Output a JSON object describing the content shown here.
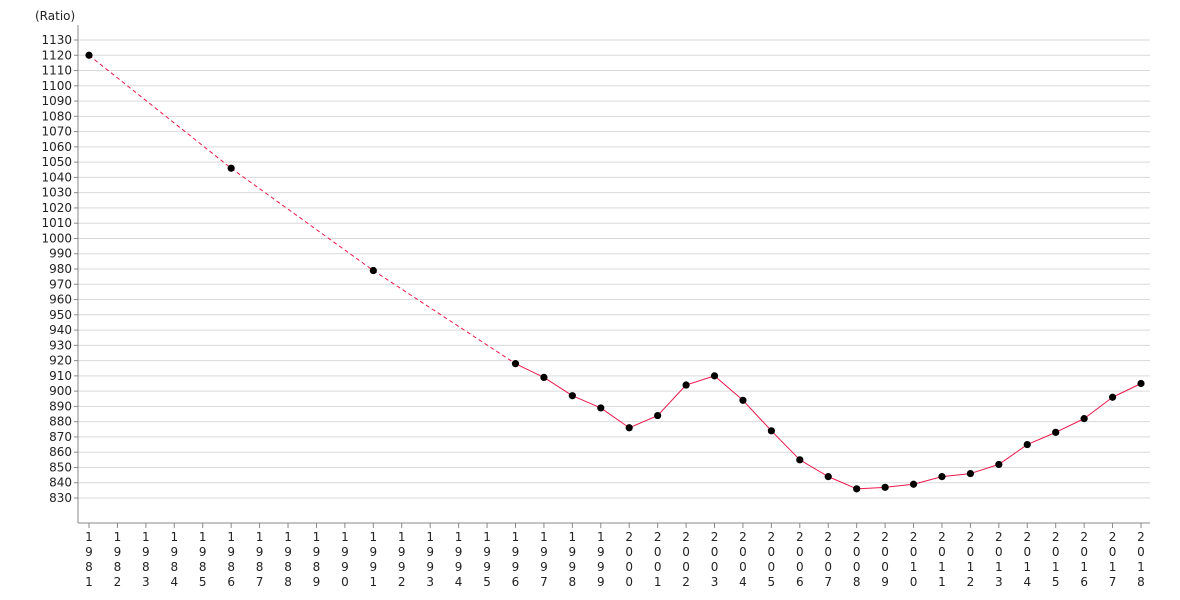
{
  "chart_data": {
    "type": "line",
    "title": "",
    "ylabel": "(Ratio)",
    "xlabel": "",
    "ylim": [
      830,
      1130
    ],
    "ytick_step": 10,
    "xlim": [
      1981,
      2018
    ],
    "grid": true,
    "colors": {
      "line": "#e8194b",
      "marker": "#000000",
      "grid": "#d9d9d9",
      "axis": "#888888"
    },
    "series": [
      {
        "x": [
          1981,
          1986,
          1991,
          1996,
          1997,
          1998,
          1999,
          2000,
          2001,
          2002,
          2003,
          2004,
          2005,
          2006,
          2007,
          2008,
          2009,
          2010,
          2011,
          2012,
          2013,
          2014,
          2015,
          2016,
          2017,
          2018
        ],
        "values": [
          1120,
          1046,
          979,
          918,
          909,
          897,
          889,
          876,
          884,
          904,
          910,
          894,
          874,
          855,
          844,
          836,
          837,
          839,
          844,
          846,
          852,
          865,
          873,
          882,
          896,
          905
        ]
      }
    ]
  }
}
